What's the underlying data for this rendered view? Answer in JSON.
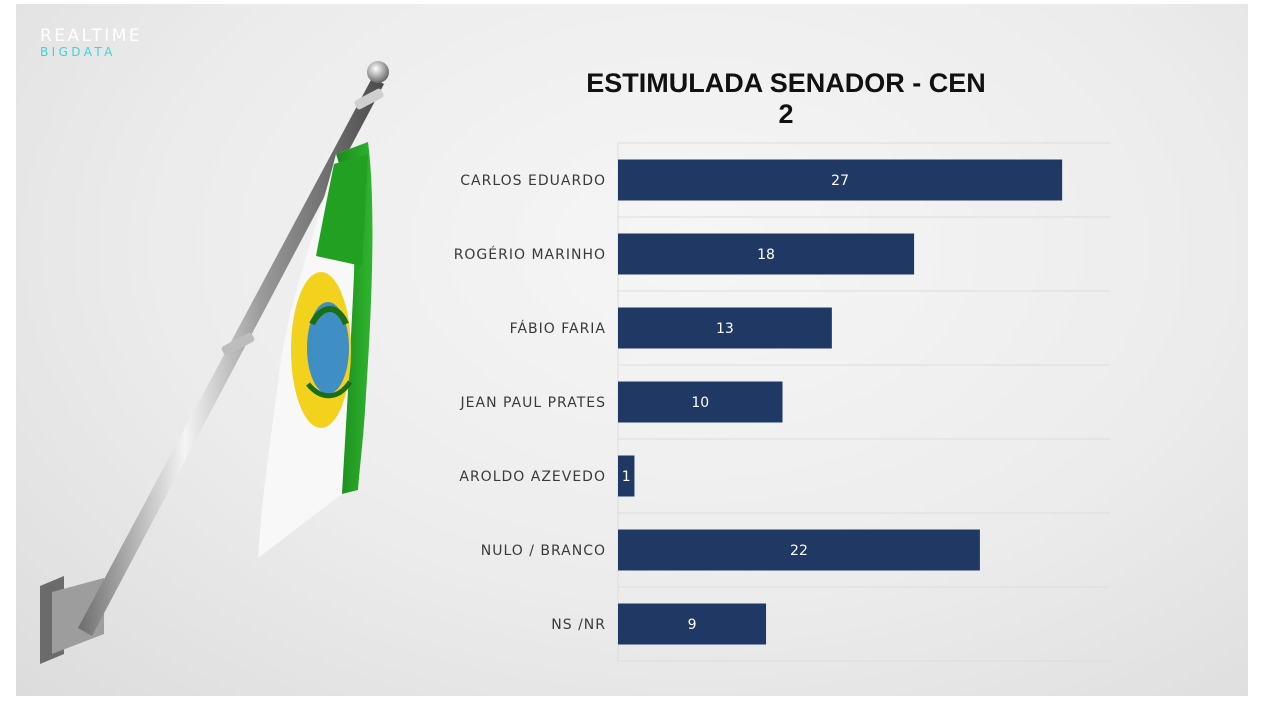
{
  "brand": {
    "line1": "REALTIME",
    "line2": "BIGDATA"
  },
  "colors": {
    "bar": "#1f3864",
    "logo_accent": "#3fd2dc",
    "grid": "#dcdcdc"
  },
  "illustration": "rio-grande-do-norte-flag-on-pole",
  "chart_data": {
    "type": "bar",
    "orientation": "horizontal",
    "title": "ESTIMULADA SENADOR - CEN 2",
    "categories": [
      "CARLOS EDUARDO",
      "ROGÉRIO MARINHO",
      "FÁBIO FARIA",
      "JEAN PAUL PRATES",
      "AROLDO AZEVEDO",
      "NULO / BRANCO",
      "NS /NR"
    ],
    "values": [
      27,
      18,
      13,
      10,
      1,
      22,
      9
    ],
    "xlim": [
      0,
      30
    ],
    "grid": true,
    "data_labels": true
  }
}
